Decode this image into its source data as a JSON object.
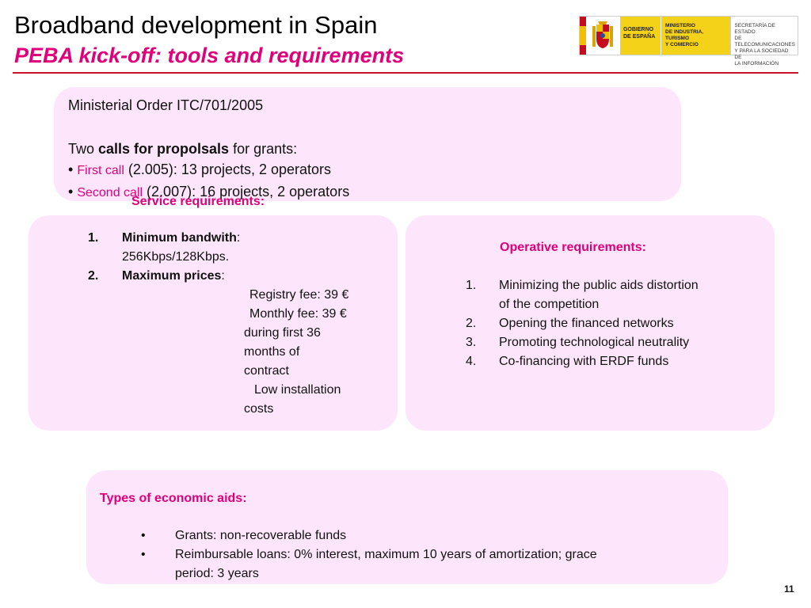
{
  "header": {
    "title": "Broadband development in Spain",
    "subtitle": "PEBA kick-off: tools and requirements"
  },
  "logo": {
    "gobierno_line1": "GOBIERNO",
    "gobierno_line2": "DE ESPAÑA",
    "ministerio_line1": "MINISTERIO",
    "ministerio_line2": "DE INDUSTRIA, TURISMO",
    "ministerio_line3": "Y COMERCIO",
    "secretaria_line1": "SECRETARÍA DE ESTADO",
    "secretaria_line2": "DE TELECOMUNICACIONES",
    "secretaria_line3": "Y PARA LA SOCIEDAD DE",
    "secretaria_line4": "LA INFORMACIÓN"
  },
  "top_box": {
    "order": "Ministerial Order ITC/701/2005",
    "calls_prefix": "Two ",
    "calls_bold": "calls for propolsals",
    "calls_suffix": " for grants:",
    "bullet": "•",
    "call1_label": "First call",
    "call1_text": " (2.005): 13 projects, 2 operators",
    "call2_label": "Second call",
    "call2_text": " (2.007): 16 projects, 2 operators"
  },
  "service": {
    "heading": "Service requirements:",
    "item1_num": "1.",
    "item1_bold": "Minimum bandwith",
    "item1_colon": ":",
    "item1_value": "256Kbps/128Kbps.",
    "item2_num": "2.",
    "item2_bold": "Maximum prices",
    "item2_colon": ":",
    "price_lines": [
      "Registry fee: 39 €",
      "Monthly fee: 39 €",
      "during first 36",
      "months of",
      "contract",
      "Low installation",
      "costs"
    ]
  },
  "operative": {
    "heading": "Operative requirements:",
    "items": [
      {
        "num": "1.",
        "lines": [
          "Minimizing the public aids distortion",
          "of the competition"
        ]
      },
      {
        "num": "2.",
        "lines": [
          "Opening the financed networks"
        ]
      },
      {
        "num": "3.",
        "lines": [
          "Promoting technological neutrality"
        ]
      },
      {
        "num": "4.",
        "lines": [
          "Co-financing with ERDF funds"
        ]
      }
    ]
  },
  "aids": {
    "heading": "Types of economic aids:",
    "bullet": "•",
    "item1": "Grants: non-recoverable funds",
    "item2_line1": "Reimbursable loans: 0% interest, maximum 10 years of amortization; grace",
    "item2_line2": "period: 3 years"
  },
  "footer": {
    "page_number": "11"
  },
  "colors": {
    "accent": "#e0007a",
    "rule": "#c8102e",
    "box_fill": "#fde6fb"
  }
}
